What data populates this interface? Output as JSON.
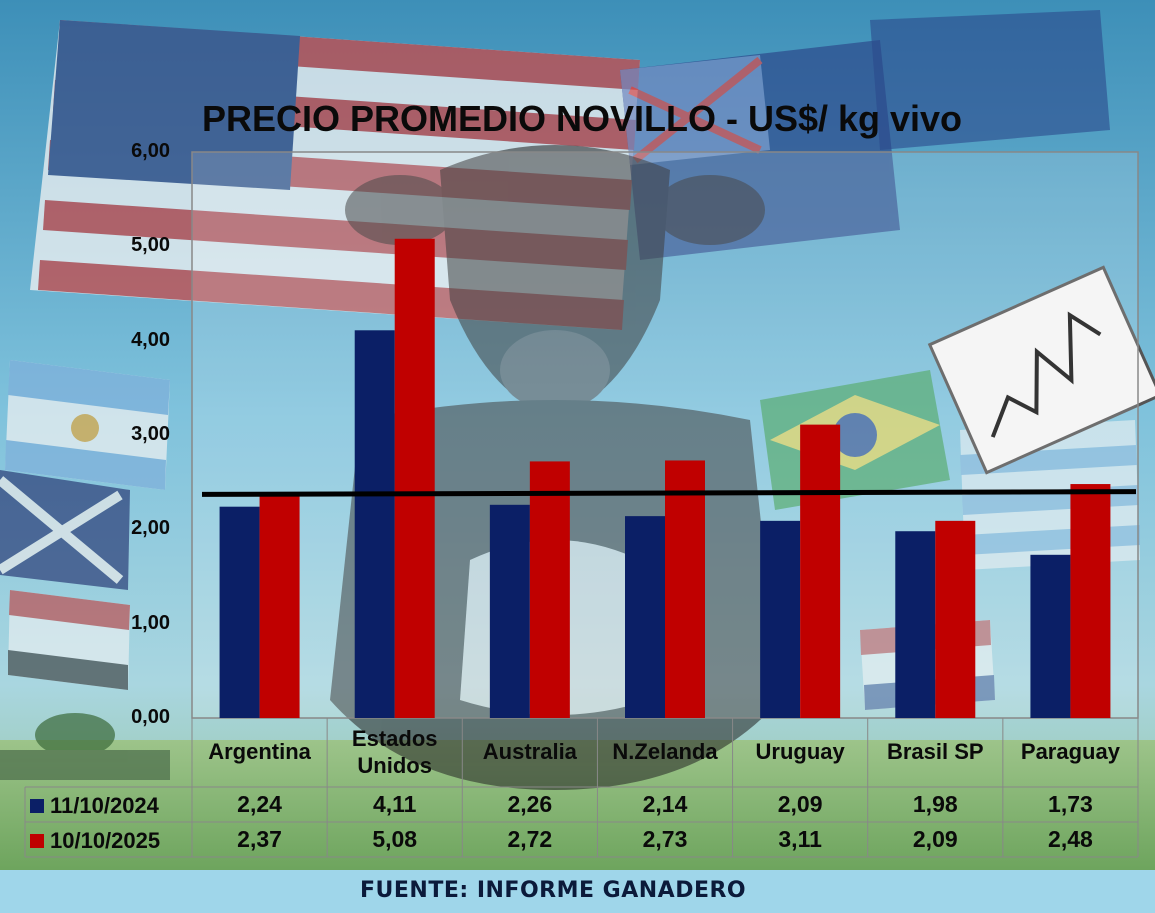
{
  "chart_data": {
    "type": "bar",
    "title": "PRECIO PROMEDIO NOVILLO  - US$/ kg vivo",
    "categories": [
      "Argentina",
      "Estados Unidos",
      "Australia",
      "N.Zelanda",
      "Uruguay",
      "Brasil SP",
      "Paraguay"
    ],
    "series": [
      {
        "name": "11/10/2024",
        "color": "#0b1f66",
        "values": [
          2.24,
          4.11,
          2.26,
          2.14,
          2.09,
          1.98,
          1.73
        ],
        "labels": [
          "2,24",
          "4,11",
          "2,26",
          "2,14",
          "2,09",
          "1,98",
          "1,73"
        ]
      },
      {
        "name": "10/10/2025",
        "color": "#c00000",
        "values": [
          2.37,
          5.08,
          2.72,
          2.73,
          3.11,
          2.09,
          2.48
        ],
        "labels": [
          "2,37",
          "5,08",
          "2,72",
          "2,73",
          "3,11",
          "2,09",
          "2,48"
        ]
      }
    ],
    "ylim": [
      0,
      6
    ],
    "yticks": [
      "0,00",
      "1,00",
      "2,00",
      "3,00",
      "4,00",
      "5,00",
      "6,00"
    ],
    "reference_line": {
      "color": "#000000",
      "y_start": 2.37,
      "y_end": 2.4
    },
    "grid": false,
    "legend": "data-table"
  },
  "footer": {
    "source": "FUENTE: INFORME GANADERO"
  },
  "background": {
    "description_icon": "cattle-and-flags-background"
  }
}
